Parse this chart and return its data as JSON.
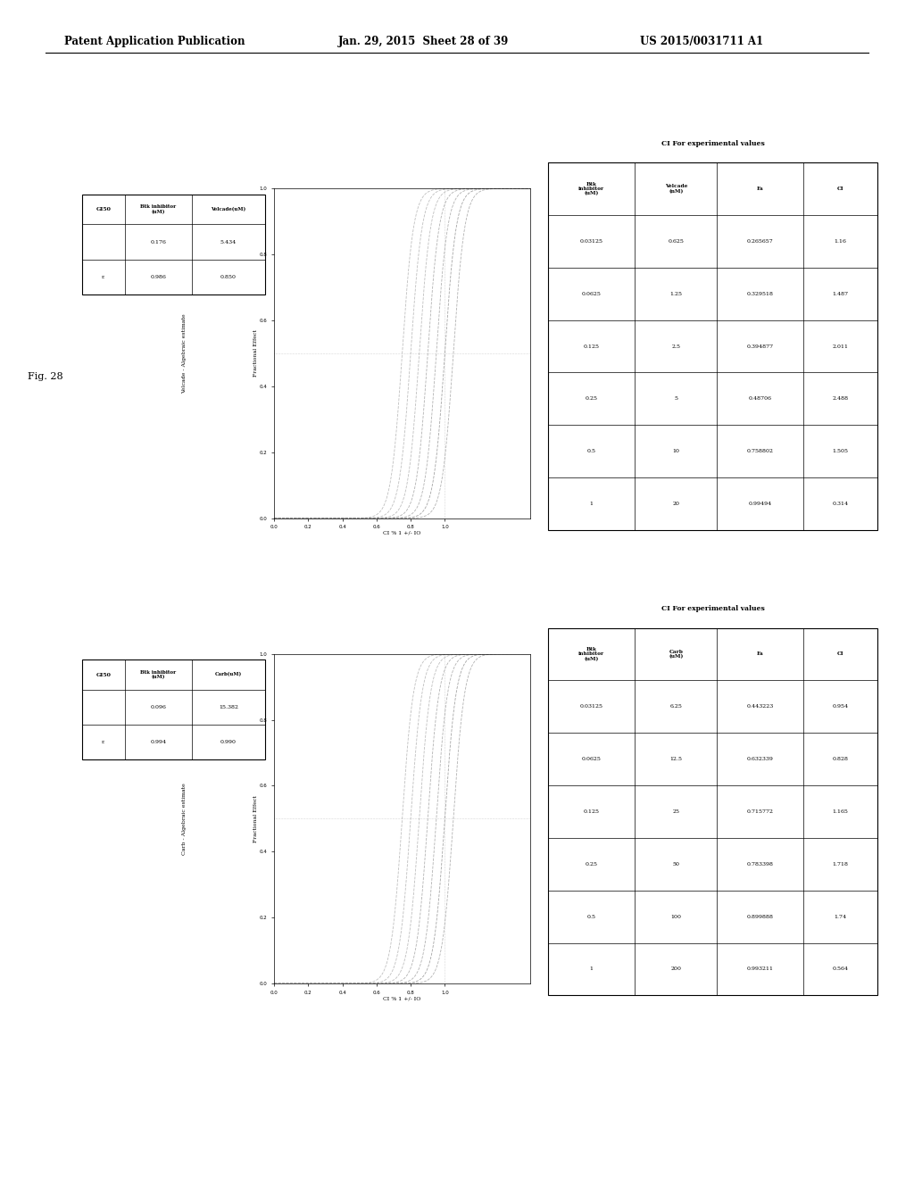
{
  "header_left": "Patent Application Publication",
  "header_mid": "Jan. 29, 2015  Sheet 28 of 39",
  "header_right": "US 2015/0031711 A1",
  "fig_label": "Fig. 28",
  "top_panel": {
    "title": "Velcade - Algebraic estimate",
    "xlabel": "CI % 1 +/- IO",
    "ylabel": "Fractional Effect",
    "table1_headers": [
      "GI50",
      "Btk inhibitor\n(uM)",
      "Velcade(uM)"
    ],
    "table1_row1": [
      "",
      "0.176",
      "5.434"
    ],
    "table1_row2": [
      "r.",
      "0.986",
      "0.850"
    ],
    "table2_title": "CI For experimental values",
    "table2_headers": [
      "Btk\ninhibitor\n(uM)",
      "Velcade\n(nM)",
      "Fa",
      "CI"
    ],
    "table2_data": [
      [
        "0.03125",
        "0.625",
        "0.265657",
        "1.16"
      ],
      [
        "0.0625",
        "1.25",
        "0.329518",
        "1.487"
      ],
      [
        "0.125",
        "2.5",
        "0.394877",
        "2.011"
      ],
      [
        "0.25",
        "5",
        "0.48706",
        "2.488"
      ],
      [
        "0.5",
        "10",
        "0.758802",
        "1.505"
      ],
      [
        "1",
        "20",
        "0.99494",
        "0.314"
      ]
    ]
  },
  "bottom_panel": {
    "title": "Carb - Algebraic estimate",
    "xlabel": "CI % 1 +/- IO",
    "ylabel": "Fractional Effect",
    "table1_headers": [
      "GI50",
      "Btk inhibitor\n(uM)",
      "Carb(uM)"
    ],
    "table1_row1": [
      "",
      "0.096",
      "15.382"
    ],
    "table1_row2": [
      "r.",
      "0.994",
      "0.990"
    ],
    "table2_title": "CI For experimental values",
    "table2_headers": [
      "Btk\ninhibitor\n(uM)",
      "Carb\n(uM)",
      "Fa",
      "CI"
    ],
    "table2_data": [
      [
        "0.03125",
        "6.25",
        "0.443223",
        "0.954"
      ],
      [
        "0.0625",
        "12.5",
        "0.632339",
        "0.828"
      ],
      [
        "0.125",
        "25",
        "0.715772",
        "1.165"
      ],
      [
        "0.25",
        "50",
        "0.783398",
        "1.718"
      ],
      [
        "0.5",
        "100",
        "0.899888",
        "1.74"
      ],
      [
        "1",
        "200",
        "0.993211",
        "0.564"
      ]
    ]
  }
}
